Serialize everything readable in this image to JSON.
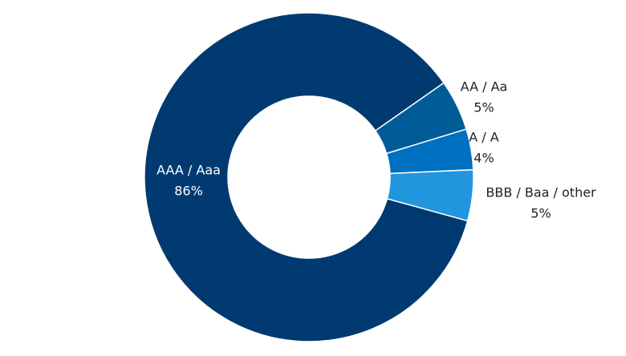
{
  "chart_data": {
    "type": "donut",
    "categories": [
      "AAA / Aaa",
      "AA / Aa",
      "A / A",
      "BBB / Baa / other"
    ],
    "values": [
      86,
      5,
      4,
      5
    ],
    "value_labels": [
      "86%",
      "5%",
      "4%",
      "5%"
    ],
    "colors": [
      "#003a70",
      "#005c97",
      "#0070c0",
      "#2196de"
    ]
  }
}
